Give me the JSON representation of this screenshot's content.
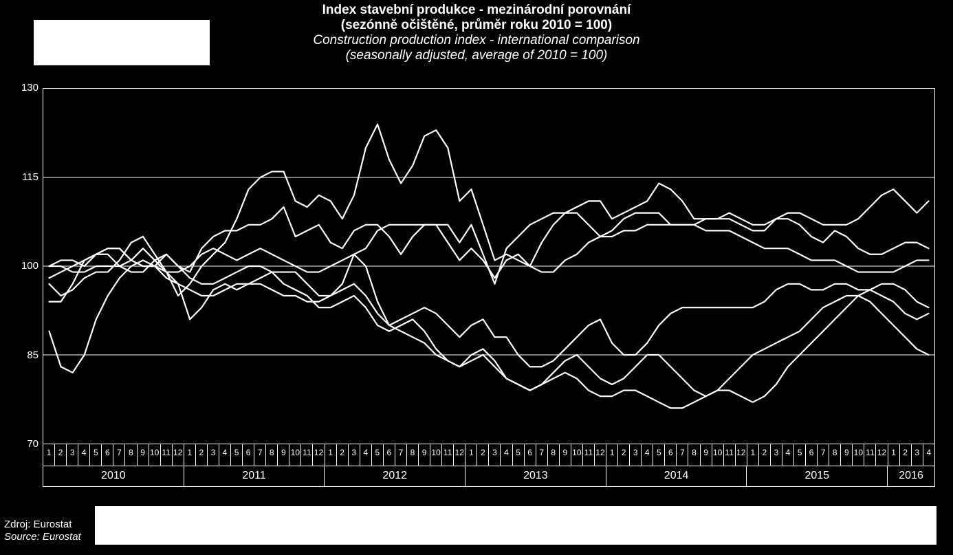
{
  "title": {
    "cz1": "Index stavební produkce - mezinárodní porovnání",
    "cz2": "(sezónně očištěné, průměr roku 2010 = 100)",
    "en1": "Construction production index - international comparison",
    "en2": "(seasonally adjusted, average of 2010 = 100)"
  },
  "source": {
    "cz": "Zdroj: Eurostat",
    "en": "Source: Eurostat"
  },
  "chart": {
    "type": "line",
    "background_color": "#000000",
    "line_color": "#ffffff",
    "grid_color": "#ffffff",
    "text_color": "#ffffff",
    "line_width": 2.2,
    "ylim": [
      70,
      130
    ],
    "yticks": [
      70,
      85,
      100,
      115,
      130
    ],
    "ytick_labels": [
      "70",
      "85",
      "100",
      "115",
      "130"
    ],
    "label_fontsize": 15,
    "x_months_per_year": 12,
    "years": [
      "2010",
      "2011",
      "2012",
      "2013",
      "2014",
      "2015",
      "2016"
    ],
    "months_2016": 4,
    "total_points": 76,
    "series": [
      {
        "name": "s1",
        "values": [
          98,
          99,
          100,
          101,
          102,
          103,
          103,
          101,
          103,
          101,
          99,
          95,
          97,
          100,
          102,
          104,
          108,
          113,
          115,
          116,
          116,
          111,
          110,
          112,
          111,
          108,
          112,
          120,
          124,
          118,
          114,
          117,
          122,
          123,
          120,
          111,
          113,
          107,
          101,
          102,
          101,
          100,
          104,
          107,
          109,
          110,
          111,
          111,
          108,
          109,
          110,
          111,
          114,
          113,
          111,
          108,
          108,
          108,
          109,
          108,
          107,
          107,
          108,
          109,
          109,
          108,
          107,
          107,
          107,
          108,
          110,
          112,
          113,
          111,
          109,
          111
        ]
      },
      {
        "name": "s2",
        "values": [
          100,
          101,
          101,
          100,
          102,
          102,
          100,
          101,
          100,
          100,
          102,
          100,
          99,
          103,
          105,
          106,
          106,
          107,
          107,
          108,
          110,
          105,
          106,
          107,
          104,
          103,
          106,
          107,
          107,
          105,
          102,
          105,
          107,
          107,
          107,
          104,
          107,
          102,
          97,
          103,
          105,
          107,
          108,
          109,
          109,
          109,
          107,
          105,
          106,
          108,
          109,
          109,
          109,
          107,
          107,
          107,
          108,
          108,
          108,
          107,
          106,
          106,
          108,
          108,
          107,
          105,
          104,
          106,
          105,
          103,
          102,
          102,
          103,
          104,
          104,
          103
        ]
      },
      {
        "name": "s3",
        "values": [
          94,
          94,
          97,
          101,
          102,
          103,
          103,
          101,
          100,
          100,
          99,
          99,
          100,
          102,
          103,
          102,
          101,
          102,
          103,
          102,
          101,
          100,
          99,
          99,
          100,
          101,
          102,
          103,
          106,
          107,
          107,
          107,
          107,
          107,
          104,
          101,
          103,
          101,
          98,
          101,
          102,
          100,
          99,
          99,
          101,
          102,
          104,
          105,
          105,
          106,
          106,
          107,
          107,
          107,
          107,
          107,
          106,
          106,
          106,
          105,
          104,
          103,
          103,
          103,
          102,
          101,
          101,
          101,
          100,
          99,
          99,
          99,
          99,
          100,
          101,
          101
        ]
      },
      {
        "name": "s4",
        "values": [
          97,
          95,
          96,
          98,
          99,
          99,
          101,
          104,
          105,
          102,
          99,
          97,
          91,
          93,
          96,
          97,
          96,
          97,
          98,
          99,
          99,
          99,
          97,
          95,
          95,
          97,
          102,
          100,
          94,
          90,
          91,
          92,
          93,
          92,
          90,
          88,
          90,
          91,
          88,
          88,
          85,
          83,
          83,
          84,
          86,
          88,
          90,
          91,
          87,
          85,
          85,
          87,
          90,
          92,
          93,
          93,
          93,
          93,
          93,
          93,
          93,
          94,
          96,
          97,
          97,
          96,
          96,
          97,
          97,
          96,
          96,
          95,
          94,
          92,
          91,
          92
        ]
      },
      {
        "name": "s5",
        "values": [
          89,
          83,
          82,
          85,
          91,
          95,
          98,
          100,
          101,
          100,
          98,
          97,
          96,
          95,
          95,
          96,
          97,
          97,
          97,
          96,
          95,
          95,
          94,
          94,
          95,
          96,
          97,
          95,
          92,
          90,
          89,
          88,
          87,
          85,
          84,
          83,
          84,
          85,
          83,
          81,
          80,
          79,
          80,
          82,
          84,
          85,
          83,
          81,
          80,
          81,
          83,
          85,
          85,
          83,
          81,
          79,
          78,
          79,
          81,
          83,
          85,
          86,
          87,
          88,
          89,
          91,
          93,
          94,
          95,
          95,
          94,
          92,
          90,
          88,
          86,
          85
        ]
      },
      {
        "name": "s6",
        "values": [
          100,
          100,
          99,
          99,
          100,
          100,
          100,
          99,
          99,
          101,
          102,
          100,
          98,
          97,
          97,
          98,
          99,
          100,
          100,
          99,
          97,
          96,
          95,
          93,
          93,
          94,
          95,
          93,
          90,
          89,
          90,
          91,
          89,
          86,
          84,
          83,
          85,
          86,
          84,
          81,
          80,
          79,
          80,
          81,
          82,
          81,
          79,
          78,
          78,
          79,
          79,
          78,
          77,
          76,
          76,
          77,
          78,
          79,
          79,
          78,
          77,
          78,
          80,
          83,
          85,
          87,
          89,
          91,
          93,
          95,
          96,
          97,
          97,
          96,
          94,
          93
        ]
      }
    ]
  }
}
